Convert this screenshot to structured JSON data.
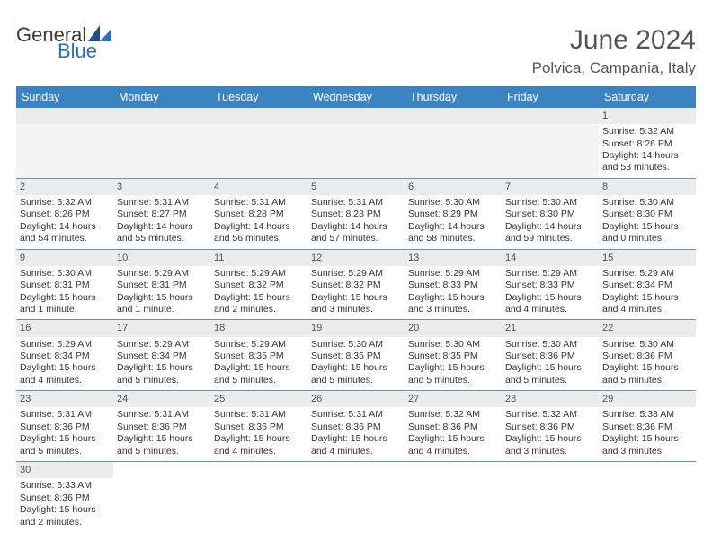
{
  "logo": {
    "word1": "General",
    "word2": "Blue"
  },
  "title": "June 2024",
  "subtitle": "Polvica, Campania, Italy",
  "colors": {
    "header_bg": "#3b84c4",
    "header_text": "#ffffff",
    "daynum_bg": "#ececec",
    "row_border": "#6a8fb8",
    "title_color": "#555555",
    "logo_accent": "#2c6fb5"
  },
  "weekdays": [
    "Sunday",
    "Monday",
    "Tuesday",
    "Wednesday",
    "Thursday",
    "Friday",
    "Saturday"
  ],
  "weeks": [
    [
      null,
      null,
      null,
      null,
      null,
      null,
      {
        "n": "1",
        "sunrise": "Sunrise: 5:32 AM",
        "sunset": "Sunset: 8:26 PM",
        "daylight": "Daylight: 14 hours and 53 minutes."
      }
    ],
    [
      {
        "n": "2",
        "sunrise": "Sunrise: 5:32 AM",
        "sunset": "Sunset: 8:26 PM",
        "daylight": "Daylight: 14 hours and 54 minutes."
      },
      {
        "n": "3",
        "sunrise": "Sunrise: 5:31 AM",
        "sunset": "Sunset: 8:27 PM",
        "daylight": "Daylight: 14 hours and 55 minutes."
      },
      {
        "n": "4",
        "sunrise": "Sunrise: 5:31 AM",
        "sunset": "Sunset: 8:28 PM",
        "daylight": "Daylight: 14 hours and 56 minutes."
      },
      {
        "n": "5",
        "sunrise": "Sunrise: 5:31 AM",
        "sunset": "Sunset: 8:28 PM",
        "daylight": "Daylight: 14 hours and 57 minutes."
      },
      {
        "n": "6",
        "sunrise": "Sunrise: 5:30 AM",
        "sunset": "Sunset: 8:29 PM",
        "daylight": "Daylight: 14 hours and 58 minutes."
      },
      {
        "n": "7",
        "sunrise": "Sunrise: 5:30 AM",
        "sunset": "Sunset: 8:30 PM",
        "daylight": "Daylight: 14 hours and 59 minutes."
      },
      {
        "n": "8",
        "sunrise": "Sunrise: 5:30 AM",
        "sunset": "Sunset: 8:30 PM",
        "daylight": "Daylight: 15 hours and 0 minutes."
      }
    ],
    [
      {
        "n": "9",
        "sunrise": "Sunrise: 5:30 AM",
        "sunset": "Sunset: 8:31 PM",
        "daylight": "Daylight: 15 hours and 1 minute."
      },
      {
        "n": "10",
        "sunrise": "Sunrise: 5:29 AM",
        "sunset": "Sunset: 8:31 PM",
        "daylight": "Daylight: 15 hours and 1 minute."
      },
      {
        "n": "11",
        "sunrise": "Sunrise: 5:29 AM",
        "sunset": "Sunset: 8:32 PM",
        "daylight": "Daylight: 15 hours and 2 minutes."
      },
      {
        "n": "12",
        "sunrise": "Sunrise: 5:29 AM",
        "sunset": "Sunset: 8:32 PM",
        "daylight": "Daylight: 15 hours and 3 minutes."
      },
      {
        "n": "13",
        "sunrise": "Sunrise: 5:29 AM",
        "sunset": "Sunset: 8:33 PM",
        "daylight": "Daylight: 15 hours and 3 minutes."
      },
      {
        "n": "14",
        "sunrise": "Sunrise: 5:29 AM",
        "sunset": "Sunset: 8:33 PM",
        "daylight": "Daylight: 15 hours and 4 minutes."
      },
      {
        "n": "15",
        "sunrise": "Sunrise: 5:29 AM",
        "sunset": "Sunset: 8:34 PM",
        "daylight": "Daylight: 15 hours and 4 minutes."
      }
    ],
    [
      {
        "n": "16",
        "sunrise": "Sunrise: 5:29 AM",
        "sunset": "Sunset: 8:34 PM",
        "daylight": "Daylight: 15 hours and 4 minutes."
      },
      {
        "n": "17",
        "sunrise": "Sunrise: 5:29 AM",
        "sunset": "Sunset: 8:34 PM",
        "daylight": "Daylight: 15 hours and 5 minutes."
      },
      {
        "n": "18",
        "sunrise": "Sunrise: 5:29 AM",
        "sunset": "Sunset: 8:35 PM",
        "daylight": "Daylight: 15 hours and 5 minutes."
      },
      {
        "n": "19",
        "sunrise": "Sunrise: 5:30 AM",
        "sunset": "Sunset: 8:35 PM",
        "daylight": "Daylight: 15 hours and 5 minutes."
      },
      {
        "n": "20",
        "sunrise": "Sunrise: 5:30 AM",
        "sunset": "Sunset: 8:35 PM",
        "daylight": "Daylight: 15 hours and 5 minutes."
      },
      {
        "n": "21",
        "sunrise": "Sunrise: 5:30 AM",
        "sunset": "Sunset: 8:36 PM",
        "daylight": "Daylight: 15 hours and 5 minutes."
      },
      {
        "n": "22",
        "sunrise": "Sunrise: 5:30 AM",
        "sunset": "Sunset: 8:36 PM",
        "daylight": "Daylight: 15 hours and 5 minutes."
      }
    ],
    [
      {
        "n": "23",
        "sunrise": "Sunrise: 5:31 AM",
        "sunset": "Sunset: 8:36 PM",
        "daylight": "Daylight: 15 hours and 5 minutes."
      },
      {
        "n": "24",
        "sunrise": "Sunrise: 5:31 AM",
        "sunset": "Sunset: 8:36 PM",
        "daylight": "Daylight: 15 hours and 5 minutes."
      },
      {
        "n": "25",
        "sunrise": "Sunrise: 5:31 AM",
        "sunset": "Sunset: 8:36 PM",
        "daylight": "Daylight: 15 hours and 4 minutes."
      },
      {
        "n": "26",
        "sunrise": "Sunrise: 5:31 AM",
        "sunset": "Sunset: 8:36 PM",
        "daylight": "Daylight: 15 hours and 4 minutes."
      },
      {
        "n": "27",
        "sunrise": "Sunrise: 5:32 AM",
        "sunset": "Sunset: 8:36 PM",
        "daylight": "Daylight: 15 hours and 4 minutes."
      },
      {
        "n": "28",
        "sunrise": "Sunrise: 5:32 AM",
        "sunset": "Sunset: 8:36 PM",
        "daylight": "Daylight: 15 hours and 3 minutes."
      },
      {
        "n": "29",
        "sunrise": "Sunrise: 5:33 AM",
        "sunset": "Sunset: 8:36 PM",
        "daylight": "Daylight: 15 hours and 3 minutes."
      }
    ],
    [
      {
        "n": "30",
        "sunrise": "Sunrise: 5:33 AM",
        "sunset": "Sunset: 8:36 PM",
        "daylight": "Daylight: 15 hours and 2 minutes."
      },
      null,
      null,
      null,
      null,
      null,
      null
    ]
  ]
}
